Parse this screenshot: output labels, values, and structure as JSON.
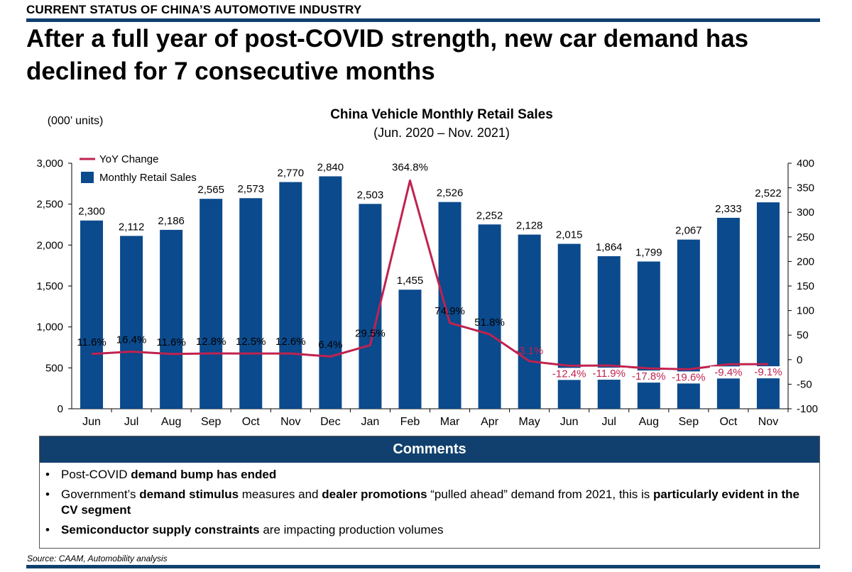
{
  "header": {
    "section_label": "CURRENT STATUS OF CHINA’S AUTOMOTIVE INDUSTRY",
    "headline_line1": "After a full year of post-COVID strength, new car demand has",
    "headline_line2": "declined for 7 consecutive months"
  },
  "colors": {
    "bar": "#0b4a8c",
    "line": "#c0224f",
    "rule": "#12406e"
  },
  "chart_data": {
    "type": "bar",
    "title": "China Vehicle Monthly Retail Sales",
    "subtitle": "(Jun. 2020 – Nov. 2021)",
    "ylabel": "(000’ units)",
    "categories": [
      "Jun",
      "Jul",
      "Aug",
      "Sep",
      "Oct",
      "Nov",
      "Dec",
      "Jan",
      "Feb",
      "Mar",
      "Apr",
      "May",
      "Jun",
      "Jul",
      "Aug",
      "Sep",
      "Oct",
      "Nov"
    ],
    "ylim": [
      0,
      3000
    ],
    "yticks": [
      "0",
      "500",
      "1,000",
      "1,500",
      "2,000",
      "2,500",
      "3,000"
    ],
    "y2lim": [
      -100,
      400
    ],
    "y2ticks": [
      "-100",
      "-50",
      "0",
      "50",
      "100",
      "150",
      "200",
      "250",
      "300",
      "350",
      "400"
    ],
    "legend_position": "top-left",
    "grid": false,
    "series": [
      {
        "name": "Monthly Retail Sales",
        "type": "bar",
        "axis": "left",
        "values": [
          2300,
          2112,
          2186,
          2565,
          2573,
          2770,
          2840,
          2503,
          1455,
          2526,
          2252,
          2128,
          2015,
          1864,
          1799,
          2067,
          2333,
          2522
        ],
        "labels": [
          "2,300",
          "2,112",
          "2,186",
          "2,565",
          "2,573",
          "2,770",
          "2,840",
          "2,503",
          "1,455",
          "2,526",
          "2,252",
          "2,128",
          "2,015",
          "1,864",
          "1,799",
          "2,067",
          "2,333",
          "2,522"
        ]
      },
      {
        "name": "YoY Change",
        "type": "line",
        "axis": "right",
        "values": [
          11.6,
          16.4,
          11.6,
          12.8,
          12.5,
          12.6,
          6.4,
          29.5,
          364.8,
          74.9,
          51.8,
          -3.1,
          -12.4,
          -11.9,
          -17.8,
          -19.6,
          -9.4,
          -9.1
        ],
        "labels": [
          "11.6%",
          "16.4%",
          "11.6%",
          "12.8%",
          "12.5%",
          "12.6%",
          "6.4%",
          "29.5%",
          "364.8%",
          "74.9%",
          "51.8%",
          "-3.1%",
          "-12.4%",
          "-11.9%",
          "-17.8%",
          "-19.6%",
          "-9.4%",
          "-9.1%"
        ]
      }
    ]
  },
  "comments": {
    "title": "Comments",
    "item1_pre": "Post-COVID ",
    "item1_bold": "demand bump has ended",
    "item2_pre": "Government’s ",
    "item2_bold1": "demand stimulus",
    "item2_mid1": " measures and ",
    "item2_bold2": "dealer promotions",
    "item2_mid2": " “pulled ahead” demand from 2021, this is ",
    "item2_bold3": "particularly evident in the CV segment",
    "item3_bold": "Semiconductor supply constraints",
    "item3_post": " are impacting production volumes"
  },
  "source": "Source: CAAM, Automobility analysis"
}
